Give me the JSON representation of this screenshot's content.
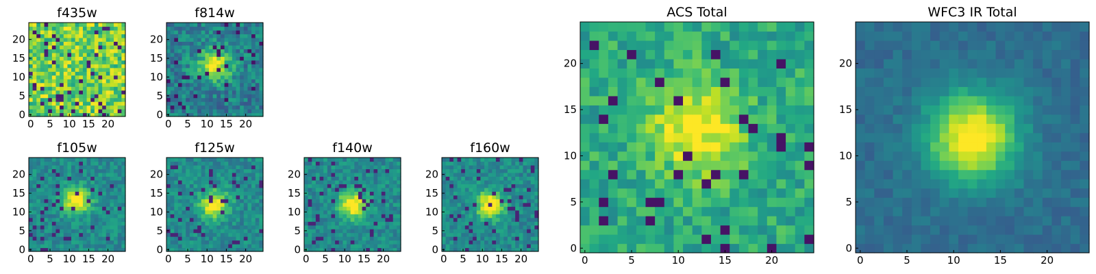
{
  "chart_data": [
    {
      "type": "heatmap",
      "title": "f435w",
      "xticks": [
        0,
        5,
        10,
        15,
        20
      ],
      "yticks": [
        0,
        5,
        10,
        15,
        20
      ],
      "xlim": [
        0,
        24
      ],
      "ylim": [
        0,
        24
      ],
      "colormap": "viridis",
      "source_peak": [
        12,
        12
      ],
      "pattern": "noise"
    },
    {
      "type": "heatmap",
      "title": "f814w",
      "xticks": [
        0,
        5,
        10,
        15,
        20
      ],
      "yticks": [
        0,
        5,
        10,
        15,
        20
      ],
      "xlim": [
        0,
        24
      ],
      "ylim": [
        0,
        24
      ],
      "colormap": "viridis",
      "source_peak": [
        12,
        13
      ],
      "pattern": "faint-source"
    },
    {
      "type": "heatmap",
      "title": "f105w",
      "xticks": [
        0,
        5,
        10,
        15,
        20
      ],
      "yticks": [
        0,
        5,
        10,
        15,
        20
      ],
      "xlim": [
        0,
        24
      ],
      "ylim": [
        0,
        24
      ],
      "colormap": "viridis",
      "source_peak": [
        12,
        13
      ],
      "pattern": "bright-source"
    },
    {
      "type": "heatmap",
      "title": "f125w",
      "xticks": [
        0,
        5,
        10,
        15,
        20
      ],
      "yticks": [
        0,
        5,
        10,
        15,
        20
      ],
      "xlim": [
        0,
        24
      ],
      "ylim": [
        0,
        24
      ],
      "colormap": "viridis",
      "source_peak": [
        12,
        12
      ],
      "pattern": "bright-source"
    },
    {
      "type": "heatmap",
      "title": "f140w",
      "xticks": [
        0,
        5,
        10,
        15,
        20
      ],
      "yticks": [
        0,
        5,
        10,
        15,
        20
      ],
      "xlim": [
        0,
        24
      ],
      "ylim": [
        0,
        24
      ],
      "colormap": "viridis",
      "source_peak": [
        12,
        12
      ],
      "pattern": "bright-source"
    },
    {
      "type": "heatmap",
      "title": "f160w",
      "xticks": [
        0,
        5,
        10,
        15,
        20
      ],
      "yticks": [
        0,
        5,
        10,
        15,
        20
      ],
      "xlim": [
        0,
        24
      ],
      "ylim": [
        0,
        24
      ],
      "colormap": "viridis",
      "source_peak": [
        12,
        12
      ],
      "pattern": "bright-source"
    },
    {
      "type": "heatmap",
      "title": "ACS Total",
      "xticks": [
        0,
        5,
        10,
        15,
        20
      ],
      "yticks": [
        0,
        5,
        10,
        15,
        20
      ],
      "xlim": [
        0,
        24
      ],
      "ylim": [
        0,
        24
      ],
      "colormap": "viridis",
      "source_peak": [
        12,
        13
      ],
      "pattern": "noisy-source"
    },
    {
      "type": "heatmap",
      "title": "WFC3 IR Total",
      "xticks": [
        0,
        5,
        10,
        15,
        20
      ],
      "yticks": [
        0,
        5,
        10,
        15,
        20
      ],
      "xlim": [
        0,
        24
      ],
      "ylim": [
        0,
        24
      ],
      "colormap": "viridis",
      "source_peak": [
        12,
        12
      ],
      "pattern": "smooth-source"
    }
  ]
}
